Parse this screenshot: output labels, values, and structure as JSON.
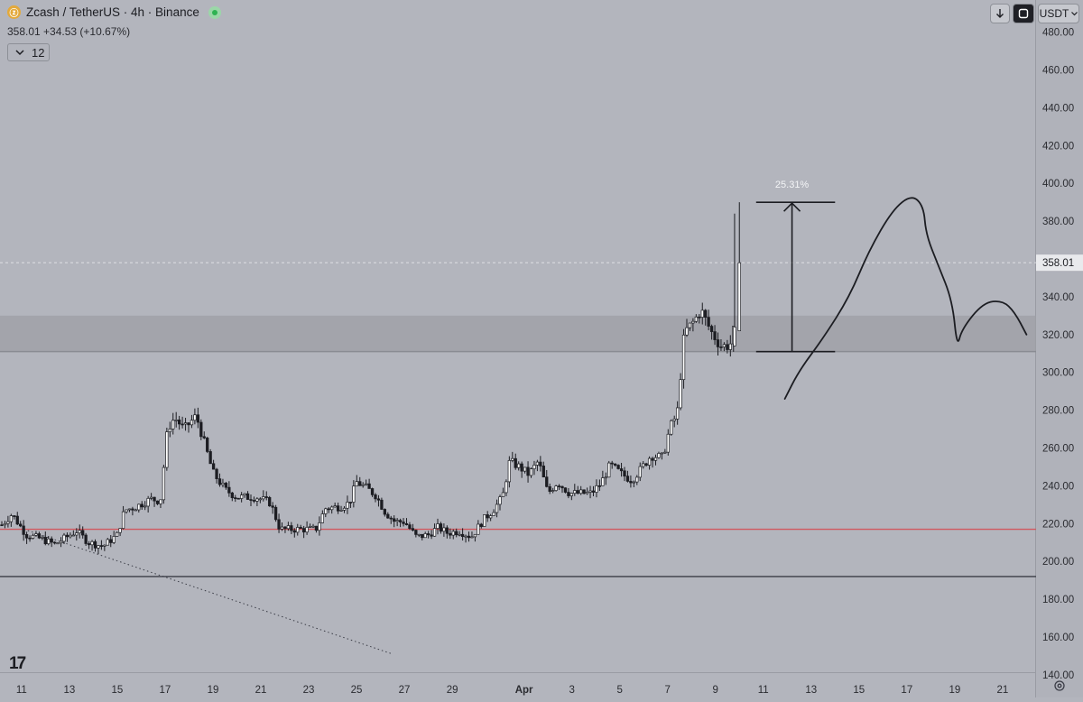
{
  "header": {
    "coin_icon": "zcash-coin-icon",
    "symbol": "Zcash / TetherUS · 4h · Binance",
    "price": "358.01",
    "change": "+34.53 (+10.67%)",
    "indicator_count": "12",
    "market_status_color": "#2fb352"
  },
  "controls": {
    "currency": "USDT",
    "download_icon": "arrow-down-icon",
    "fullscreen_icon": "fullscreen-icon",
    "settings_icon": "gear-icon"
  },
  "logo": {
    "text": "17"
  },
  "colors": {
    "background": "#b3b5bd",
    "support_line": "#d2585f",
    "base_line": "#3a3c46",
    "zone": "#9d9fa6"
  },
  "chart_data": {
    "type": "candlestick",
    "y_axis_ticks": [
      "480.00",
      "460.00",
      "440.00",
      "420.00",
      "400.00",
      "380.00",
      "360.00",
      "340.00",
      "320.00",
      "300.00",
      "280.00",
      "260.00",
      "240.00",
      "220.00",
      "200.00",
      "180.00",
      "160.00",
      "140.00"
    ],
    "x_axis_ticks": [
      "11",
      "13",
      "15",
      "17",
      "19",
      "21",
      "23",
      "25",
      "27",
      "29",
      "Apr",
      "3",
      "5",
      "7",
      "9",
      "11",
      "13",
      "15",
      "17",
      "19",
      "21"
    ],
    "last_price_label": "358.01",
    "last_price": 358.01,
    "y_range": [
      128,
      497
    ],
    "x_range": [
      "Mar 10.1",
      "Apr 22.4"
    ],
    "price_path": [
      [
        "Mar 10.0",
        217
      ],
      [
        "Mar 10.6",
        225
      ],
      [
        "Mar 11.2",
        214
      ],
      [
        "Mar 11.8",
        212
      ],
      [
        "Mar 12.4",
        209
      ],
      [
        "Mar 12.9",
        213
      ],
      [
        "Mar 13.3",
        216
      ],
      [
        "Mar 13.8",
        210
      ],
      [
        "Mar 14.4",
        208
      ],
      [
        "Mar 15.0",
        214
      ],
      [
        "Mar 15.3",
        227
      ],
      [
        "Mar 15.8",
        229
      ],
      [
        "Mar 16.4",
        233
      ],
      [
        "Mar 16.8",
        232
      ],
      [
        "Mar 17.1",
        270
      ],
      [
        "Mar 17.4",
        276
      ],
      [
        "Mar 17.8",
        270
      ],
      [
        "Mar 18.3",
        277
      ],
      [
        "Mar 18.7",
        260
      ],
      [
        "Mar 19.0",
        247
      ],
      [
        "Mar 19.5",
        238
      ],
      [
        "Mar 20.0",
        234
      ],
      [
        "Mar 20.8",
        234
      ],
      [
        "Mar 21.4",
        231
      ],
      [
        "Mar 21.8",
        217
      ],
      [
        "Mar 22.6",
        217
      ],
      [
        "Mar 23.3",
        217
      ],
      [
        "Mar 23.7",
        228
      ],
      [
        "Mar 24.3",
        229
      ],
      [
        "Mar 24.7",
        231
      ],
      [
        "Mar 25.0",
        242
      ],
      [
        "Mar 25.4",
        239
      ],
      [
        "Mar 25.8",
        235
      ],
      [
        "Mar 26.2",
        226
      ],
      [
        "Mar 26.6",
        221
      ],
      [
        "Mar 27.0",
        221
      ],
      [
        "Mar 27.5",
        213
      ],
      [
        "Mar 28.0",
        214
      ],
      [
        "Mar 28.4",
        218
      ],
      [
        "Mar 28.8",
        215
      ],
      [
        "Mar 29.3",
        216
      ],
      [
        "Mar 29.8",
        213
      ],
      [
        "Mar 30.3",
        222
      ],
      [
        "Mar 30.7",
        227
      ],
      [
        "Mar 31.1",
        234
      ],
      [
        "Mar 31.4",
        253
      ],
      [
        "Mar 31.8",
        250
      ],
      [
        "Apr 1.2",
        246
      ],
      [
        "Apr 1.6",
        253
      ],
      [
        "Apr 2.0",
        236
      ],
      [
        "Apr 2.4",
        242
      ],
      [
        "Apr 2.9",
        236
      ],
      [
        "Apr 3.4",
        236
      ],
      [
        "Apr 3.8",
        236
      ],
      [
        "Apr 4.2",
        241
      ],
      [
        "Apr 4.6",
        251
      ],
      [
        "Apr 5.1",
        246
      ],
      [
        "Apr 5.5",
        243
      ],
      [
        "Apr 5.9",
        249
      ],
      [
        "Apr 6.3",
        256
      ],
      [
        "Apr 6.8",
        255
      ],
      [
        "Apr 7.1",
        271
      ],
      [
        "Apr 7.4",
        278
      ],
      [
        "Apr 7.7",
        321
      ],
      [
        "Apr 8.1",
        327
      ],
      [
        "Apr 8.4",
        333
      ],
      [
        "Apr 8.8",
        322
      ],
      [
        "Apr 9.2",
        314
      ],
      [
        "Apr 9.6",
        314
      ],
      [
        "Apr 9.8",
        324
      ],
      [
        "Apr 10.0",
        358.01
      ]
    ],
    "horizontal_lines": [
      {
        "price": 217,
        "color": "#d2585f"
      },
      {
        "price": 192,
        "color": "#3a3c46"
      }
    ],
    "zone": {
      "from": 311,
      "to": 330
    },
    "trendline": {
      "from": [
        "Mar 11.1",
        217
      ],
      "to": [
        "Mar 26.5",
        151
      ],
      "style": "dotted"
    },
    "measure": {
      "label": "25.31%",
      "low": 311,
      "high": 390,
      "at": "Apr 12.2",
      "from": "Apr 10.7",
      "to": "Apr 14.0"
    },
    "projection_path": [
      [
        "Apr 11.9",
        286
      ],
      [
        "Apr 12.5",
        301
      ],
      [
        "Apr 13.5",
        318
      ],
      [
        "Apr 14.6",
        340
      ],
      [
        "Apr 15.4",
        364
      ],
      [
        "Apr 16.4",
        386
      ],
      [
        "Apr 17.2",
        394
      ],
      [
        "Apr 17.7",
        388
      ],
      [
        "Apr 17.8",
        373
      ],
      [
        "Apr 18.3",
        357
      ],
      [
        "Apr 18.9",
        338
      ],
      [
        "Apr 19.1",
        313
      ],
      [
        "Apr 19.3",
        323
      ],
      [
        "Apr 20.2",
        337
      ],
      [
        "Apr 21.0",
        338
      ],
      [
        "Apr 21.5",
        332
      ],
      [
        "Apr 22.0",
        320
      ]
    ]
  }
}
